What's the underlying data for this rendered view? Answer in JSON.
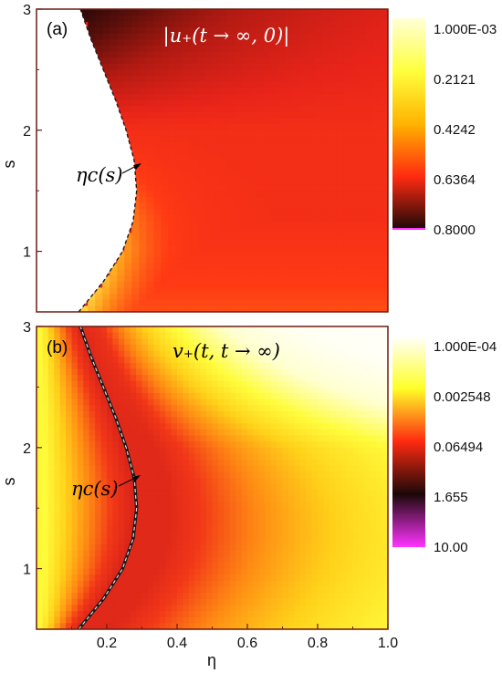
{
  "chart_data": [
    {
      "type": "heatmap",
      "panel_label": "(a)",
      "title": "|u₊(t → ∞, 0)|",
      "xlabel": "",
      "ylabel": "s",
      "xlim": [
        0.0,
        1.0
      ],
      "ylim": [
        0.5,
        3.0
      ],
      "x_ticks": [],
      "y_ticks": [
        1,
        2,
        3
      ],
      "y_tick_labels": [
        "1",
        "2",
        "3"
      ],
      "colorbar": {
        "labels": [
          "1.000E-03",
          "0.2121",
          "0.4242",
          "0.6364",
          "0.8000"
        ],
        "colors": [
          "#ffffd8",
          "#ffff3c",
          "#ffb300",
          "#ff2a10",
          "#1a0808"
        ],
        "range": [
          0.001,
          0.8
        ]
      },
      "curve_label": "ηc(s)",
      "curve_s": [
        0.5,
        0.75,
        1.0,
        1.25,
        1.5,
        1.75,
        2.0,
        2.25,
        2.5,
        2.75,
        3.0
      ],
      "curve_eta": [
        0.12,
        0.19,
        0.245,
        0.275,
        0.285,
        0.278,
        0.255,
        0.225,
        0.19,
        0.155,
        0.125
      ],
      "grid": false
    },
    {
      "type": "heatmap",
      "panel_label": "(b)",
      "title": "v₊(t, t → ∞)",
      "xlabel": "η",
      "ylabel": "s",
      "xlim": [
        0.0,
        1.0
      ],
      "ylim": [
        0.5,
        3.0
      ],
      "x_ticks": [
        0.2,
        0.4,
        0.6,
        0.8,
        1.0
      ],
      "x_tick_labels": [
        "0.2",
        "0.4",
        "0.6",
        "0.8",
        "1.0"
      ],
      "y_ticks": [
        1,
        2,
        3
      ],
      "y_tick_labels": [
        "1",
        "2",
        "3"
      ],
      "colorbar": {
        "labels": [
          "1.000E-04",
          "0.002548",
          "0.06494",
          "1.655",
          "10.00"
        ],
        "colors": [
          "#ffffff",
          "#ffff28",
          "#ff2a10",
          "#1a0808",
          "#ff33ff"
        ],
        "range": [
          0.0001,
          10.0
        ],
        "scale": "log"
      },
      "curve_label": "ηc(s)",
      "curve_s": [
        0.5,
        0.75,
        1.0,
        1.25,
        1.5,
        1.75,
        2.0,
        2.25,
        2.5,
        2.75,
        3.0
      ],
      "curve_eta": [
        0.12,
        0.19,
        0.245,
        0.275,
        0.285,
        0.278,
        0.255,
        0.225,
        0.19,
        0.155,
        0.125
      ],
      "grid": false
    }
  ]
}
